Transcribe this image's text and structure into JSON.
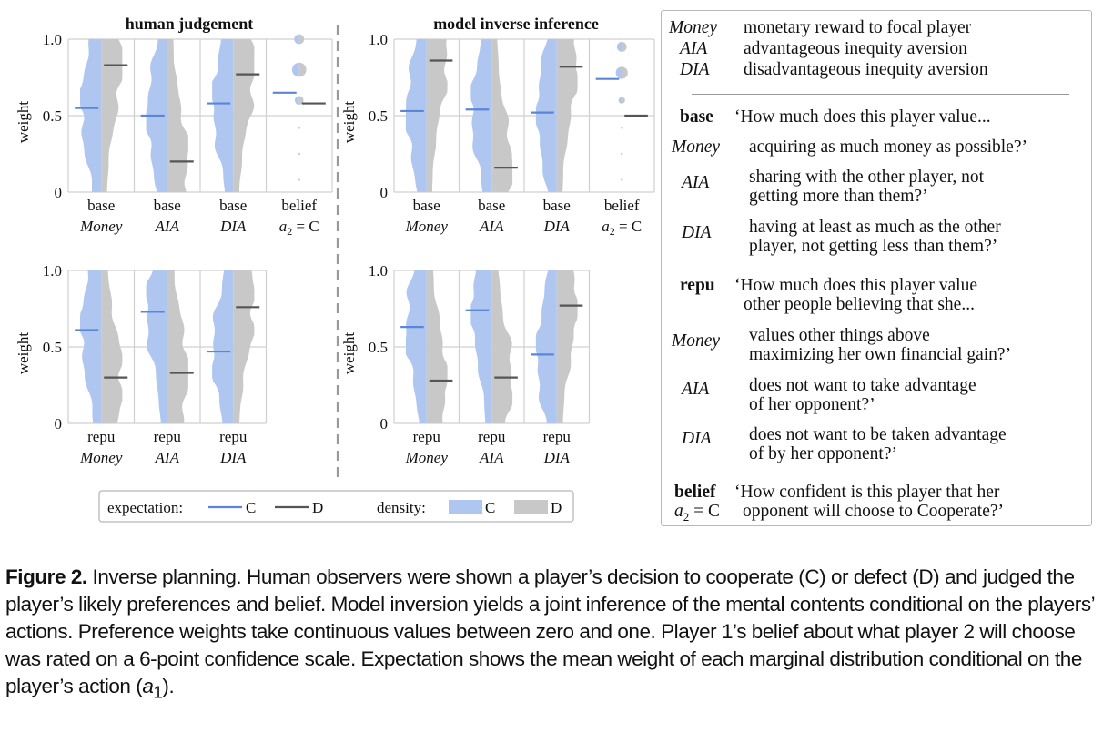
{
  "colors": {
    "C": "#aec6f0",
    "D": "#c8c8c8",
    "C_line": "#5b86d8",
    "D_line": "#555555",
    "grid": "#d0d0d0"
  },
  "panel_titles": {
    "human": "human  judgement",
    "model": "model inverse inference"
  },
  "axis": {
    "ylabel": "weight",
    "yticks": [
      "0",
      "0.5",
      "1.0"
    ]
  },
  "chart_data": [
    {
      "type": "violin",
      "title": "human  judgement",
      "ylabel": "weight",
      "ylim": [
        0,
        1
      ],
      "categories": [
        {
          "label": "base",
          "sub": "Money",
          "sub_prefix": ""
        },
        {
          "label": "base",
          "sub": "AIA",
          "sub_prefix": ""
        },
        {
          "label": "base",
          "sub": "DIA",
          "sub_prefix": ""
        },
        {
          "label": "belief",
          "sub": "= C",
          "sub_prefix": "a2"
        }
      ],
      "expectation": {
        "C": [
          0.55,
          0.5,
          0.58,
          0.65
        ],
        "D": [
          0.83,
          0.2,
          0.77,
          0.58
        ]
      },
      "belief_dots": {
        "C": [
          [
            1.0,
            0.45
          ],
          [
            0.8,
            0.65
          ],
          [
            0.6,
            0.4
          ],
          [
            0.42,
            0.1
          ],
          [
            0.25,
            0.1
          ],
          [
            0.08,
            0.1
          ]
        ],
        "D": [
          [
            1.0,
            0.45
          ],
          [
            0.8,
            0.65
          ],
          [
            0.6,
            0.4
          ],
          [
            0.42,
            0.1
          ],
          [
            0.25,
            0.1
          ],
          [
            0.08,
            0.1
          ]
        ]
      }
    },
    {
      "type": "violin",
      "title": "model inverse inference",
      "ylabel": "weight",
      "ylim": [
        0,
        1
      ],
      "categories": [
        {
          "label": "base",
          "sub": "Money",
          "sub_prefix": ""
        },
        {
          "label": "base",
          "sub": "AIA",
          "sub_prefix": ""
        },
        {
          "label": "base",
          "sub": "DIA",
          "sub_prefix": ""
        },
        {
          "label": "belief",
          "sub": "= C",
          "sub_prefix": "a2"
        }
      ],
      "expectation": {
        "C": [
          0.53,
          0.54,
          0.52,
          0.74
        ],
        "D": [
          0.86,
          0.16,
          0.82,
          0.5
        ]
      },
      "belief_dots": {
        "C": [
          [
            0.95,
            0.45
          ],
          [
            0.78,
            0.55
          ],
          [
            0.6,
            0.3
          ],
          [
            0.42,
            0.1
          ],
          [
            0.25,
            0.1
          ],
          [
            0.08,
            0.1
          ]
        ],
        "D": [
          [
            0.95,
            0.45
          ],
          [
            0.78,
            0.55
          ],
          [
            0.6,
            0.3
          ],
          [
            0.42,
            0.1
          ],
          [
            0.25,
            0.1
          ],
          [
            0.08,
            0.1
          ]
        ]
      }
    },
    {
      "type": "violin",
      "title": "",
      "ylabel": "weight",
      "ylim": [
        0,
        1
      ],
      "categories": [
        {
          "label": "repu",
          "sub": "Money",
          "sub_prefix": ""
        },
        {
          "label": "repu",
          "sub": "AIA",
          "sub_prefix": ""
        },
        {
          "label": "repu",
          "sub": "DIA",
          "sub_prefix": ""
        }
      ],
      "expectation": {
        "C": [
          0.61,
          0.73,
          0.47
        ],
        "D": [
          0.3,
          0.33,
          0.76
        ]
      }
    },
    {
      "type": "violin",
      "title": "",
      "ylabel": "weight",
      "ylim": [
        0,
        1
      ],
      "categories": [
        {
          "label": "repu",
          "sub": "Money",
          "sub_prefix": ""
        },
        {
          "label": "repu",
          "sub": "AIA",
          "sub_prefix": ""
        },
        {
          "label": "repu",
          "sub": "DIA",
          "sub_prefix": ""
        }
      ],
      "expectation": {
        "C": [
          0.63,
          0.74,
          0.45
        ],
        "D": [
          0.28,
          0.3,
          0.77
        ]
      }
    }
  ],
  "legend": {
    "expectation_label": "expectation:",
    "density_label": "density:",
    "C": "C",
    "D": "D"
  },
  "right_panel": {
    "defs": [
      {
        "term": "Money",
        "text": "monetary reward to focal player"
      },
      {
        "term": "AIA",
        "text": "advantageous inequity aversion"
      },
      {
        "term": "DIA",
        "text": "disadvantageous inequity aversion"
      }
    ],
    "base": {
      "head": "base",
      "q": "‘How much does this player value...",
      "items": [
        {
          "term": "Money",
          "lines": [
            "acquiring as much money as possible?’"
          ]
        },
        {
          "term": "AIA",
          "lines": [
            "sharing with the other player, not",
            "getting more than them?’"
          ]
        },
        {
          "term": "DIA",
          "lines": [
            "having at least as much as the other",
            "player, not getting less than them?’"
          ]
        }
      ]
    },
    "repu": {
      "head": "repu",
      "q1": "‘How much does this player value",
      "q2": "other people believing that she...",
      "items": [
        {
          "term": "Money",
          "lines": [
            "values other things above",
            "maximizing her own financial gain?’"
          ]
        },
        {
          "term": "AIA",
          "lines": [
            "does not want to take advantage",
            "of her opponent?’"
          ]
        },
        {
          "term": "DIA",
          "lines": [
            "does not want to be taken advantage",
            "of by her opponent?’"
          ]
        }
      ]
    },
    "belief": {
      "head": "belief",
      "sub_var": "a",
      "sub_idx": "2",
      "sub_rest": " = C",
      "q1": "‘How confident is this player that her",
      "q2": "opponent will choose to Cooperate?’"
    }
  },
  "caption": {
    "label": "Figure 2.",
    "text": " Inverse planning. Human observers were shown a player’s decision to cooperate (C) or defect (D) and judged the player’s likely preferences and belief. Model inversion yields a joint inference of the mental contents conditional on the players’ actions. Preference weights take continuous values between zero and one. Player 1’s belief about what player 2 will choose was rated on a 6-point confidence scale. Expectation shows the mean weight of each marginal distribution conditional on the player’s action (",
    "a": "a",
    "sub": "1",
    "tail": ")."
  }
}
